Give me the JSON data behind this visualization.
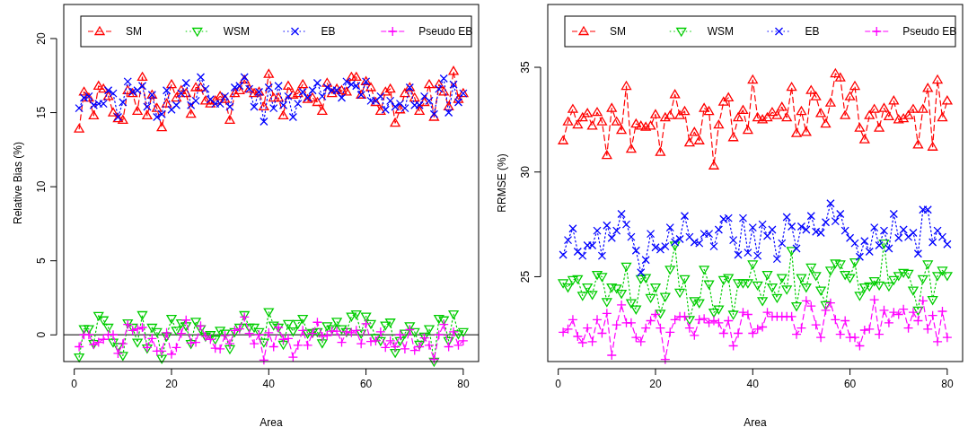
{
  "chart_data": [
    {
      "type": "line",
      "xlabel": "Area",
      "ylabel": "Relative Bias (%)",
      "xlim": [
        -2.16,
        83.16
      ],
      "ylim": [
        -1.8,
        22.3
      ],
      "xticks": [
        0,
        20,
        40,
        60,
        80
      ],
      "yticks": [
        0,
        5,
        10,
        15,
        20
      ],
      "legend": "top",
      "grid": false,
      "ref_lines": [
        {
          "axis": "y",
          "value": 0,
          "color": "#555555",
          "line_style": "solid"
        }
      ],
      "x": [
        1,
        2,
        3,
        4,
        5,
        6,
        7,
        8,
        9,
        10,
        11,
        12,
        13,
        14,
        15,
        16,
        17,
        18,
        19,
        20,
        21,
        22,
        23,
        24,
        25,
        26,
        27,
        28,
        29,
        30,
        31,
        32,
        33,
        34,
        35,
        36,
        37,
        38,
        39,
        40,
        41,
        42,
        43,
        44,
        45,
        46,
        47,
        48,
        49,
        50,
        51,
        52,
        53,
        54,
        55,
        56,
        57,
        58,
        59,
        60,
        61,
        62,
        63,
        64,
        65,
        66,
        67,
        68,
        69,
        70,
        71,
        72,
        73,
        74,
        75,
        76,
        77,
        78,
        79,
        80
      ],
      "series": [
        {
          "name": "SM",
          "color": "#ff0000",
          "marker": "triangle",
          "line_style": "dashed",
          "values": [
            13.9,
            16.4,
            16.0,
            14.8,
            16.8,
            16.6,
            16.1,
            15.0,
            14.6,
            14.5,
            16.5,
            16.3,
            15.1,
            17.4,
            14.8,
            16.2,
            15.3,
            14.0,
            15.6,
            16.9,
            16.0,
            16.5,
            16.3,
            14.9,
            16.7,
            16.7,
            15.8,
            15.6,
            15.8,
            16.1,
            15.9,
            14.5,
            16.3,
            16.5,
            17.2,
            16.6,
            16.3,
            16.4,
            15.4,
            17.6,
            16.0,
            16.0,
            14.8,
            16.8,
            16.2,
            16.3,
            16.9,
            15.9,
            16.0,
            15.7,
            15.1,
            17.0,
            16.3,
            16.6,
            16.5,
            16.4,
            17.4,
            17.4,
            16.2,
            17.1,
            16.7,
            15.7,
            15.1,
            16.4,
            16.6,
            14.3,
            15.2,
            16.3,
            16.7,
            16.0,
            15.1,
            15.7,
            16.9,
            14.7,
            16.9,
            16.4,
            15.4,
            17.8,
            15.9,
            16.3
          ]
        },
        {
          "name": "WSM",
          "color": "#00cd00",
          "marker": "triangle-down",
          "line_style": "dotted",
          "values": [
            -1.5,
            0.4,
            0.4,
            -0.6,
            1.3,
            1.0,
            0.5,
            -0.5,
            -0.8,
            -1.4,
            0.8,
            0.5,
            -0.5,
            1.35,
            -0.9,
            0.5,
            0.2,
            -1.6,
            -0.1,
            1.1,
            0.3,
            0.8,
            0.6,
            -0.6,
            0.9,
            0.4,
            -0.1,
            0.0,
            -0.3,
            0.3,
            0.1,
            -0.95,
            0.2,
            0.5,
            1.35,
            0.5,
            0.5,
            0.2,
            -0.5,
            1.55,
            0.65,
            0.5,
            -0.65,
            0.75,
            0.25,
            0.75,
            1.1,
            0.1,
            0.15,
            0.2,
            -0.55,
            0.6,
            0.4,
            0.9,
            0.4,
            0.2,
            1.25,
            1.4,
            0.1,
            1.25,
            0.75,
            -0.2,
            -0.4,
            0.65,
            0.85,
            -1.2,
            -0.4,
            0.1,
            0.6,
            0.2,
            -0.65,
            -0.1,
            0.4,
            -1.8,
            1.1,
            1.0,
            -0.4,
            1.4,
            0.05,
            0.2
          ]
        },
        {
          "name": "EB",
          "color": "#0000ff",
          "marker": "cross",
          "line_style": "dotted",
          "values": [
            15.3,
            16.0,
            16.1,
            15.5,
            15.6,
            15.6,
            16.5,
            16.3,
            14.7,
            15.7,
            17.1,
            16.4,
            16.5,
            16.8,
            15.4,
            16.2,
            14.7,
            14.9,
            16.5,
            15.2,
            15.5,
            16.3,
            17.0,
            15.5,
            15.8,
            17.4,
            16.6,
            15.9,
            15.6,
            15.6,
            16.1,
            15.4,
            16.7,
            16.8,
            17.4,
            16.6,
            15.4,
            16.4,
            14.4,
            16.7,
            15.3,
            16.8,
            15.5,
            16.1,
            14.7,
            15.6,
            16.4,
            16.0,
            16.5,
            17.0,
            16.1,
            16.7,
            16.5,
            16.5,
            16.0,
            17.1,
            16.9,
            16.8,
            16.2,
            17.1,
            15.8,
            15.8,
            16.1,
            15.2,
            15.8,
            15.4,
            15.6,
            15.3,
            16.7,
            15.5,
            15.5,
            16.1,
            15.8,
            14.9,
            16.6,
            17.3,
            15.0,
            16.9,
            15.7,
            16.3
          ]
        },
        {
          "name": "Pseudo EB",
          "color": "#ff00ff",
          "marker": "plus",
          "line_style": "dashed",
          "values": [
            -0.8,
            0.0,
            0.0,
            -0.65,
            -0.5,
            -0.3,
            0.0,
            0.0,
            -1.25,
            -0.6,
            0.7,
            0.3,
            0.4,
            0.5,
            -0.85,
            -0.25,
            -1.1,
            -1.1,
            0.15,
            -1.3,
            -0.85,
            0.1,
            1.0,
            -0.55,
            -0.5,
            0.6,
            -0.1,
            -0.3,
            -0.9,
            -0.95,
            -0.05,
            -0.6,
            0.3,
            0.4,
            1.2,
            0.1,
            -0.6,
            0.0,
            -1.7,
            0.15,
            -0.8,
            0.5,
            -0.3,
            -0.25,
            -1.5,
            -0.7,
            0.3,
            -0.7,
            0.1,
            0.85,
            -0.1,
            -0.05,
            0.25,
            0.25,
            -0.5,
            0.2,
            0.15,
            0.3,
            -0.6,
            0.75,
            -0.45,
            -0.4,
            0.2,
            -0.85,
            -0.4,
            -0.8,
            0.0,
            -0.95,
            0.35,
            -1.05,
            -0.8,
            -0.2,
            -0.7,
            -1.65,
            0.0,
            0.7,
            -0.8,
            0.2,
            -0.7,
            -0.4
          ]
        }
      ]
    },
    {
      "type": "line",
      "xlabel": "Area",
      "ylabel": "RRMSE (%)",
      "xlim": [
        -2.16,
        83.16
      ],
      "ylim": [
        20.95,
        38.0
      ],
      "xticks": [
        0,
        20,
        40,
        60,
        80
      ],
      "yticks": [
        25,
        30,
        35
      ],
      "legend": "top",
      "grid": false,
      "x": [
        1,
        2,
        3,
        4,
        5,
        6,
        7,
        8,
        9,
        10,
        11,
        12,
        13,
        14,
        15,
        16,
        17,
        18,
        19,
        20,
        21,
        22,
        23,
        24,
        25,
        26,
        27,
        28,
        29,
        30,
        31,
        32,
        33,
        34,
        35,
        36,
        37,
        38,
        39,
        40,
        41,
        42,
        43,
        44,
        45,
        46,
        47,
        48,
        49,
        50,
        51,
        52,
        53,
        54,
        55,
        56,
        57,
        58,
        59,
        60,
        61,
        62,
        63,
        64,
        65,
        66,
        67,
        68,
        69,
        70,
        71,
        72,
        73,
        74,
        75,
        76,
        77,
        78,
        79,
        80
      ],
      "series": [
        {
          "name": "SM",
          "color": "#ff0000",
          "marker": "triangle",
          "line_style": "dashed",
          "values": [
            31.5,
            32.4,
            33.0,
            32.25,
            32.6,
            32.8,
            32.2,
            32.85,
            32.4,
            30.8,
            33.05,
            32.4,
            32.0,
            34.1,
            31.1,
            32.3,
            32.2,
            32.15,
            32.2,
            32.75,
            30.95,
            32.6,
            32.7,
            33.7,
            32.7,
            32.9,
            31.4,
            31.9,
            31.5,
            33.05,
            32.9,
            30.3,
            32.25,
            33.35,
            33.55,
            31.65,
            32.6,
            32.95,
            32.0,
            34.4,
            32.6,
            32.5,
            32.6,
            32.85,
            32.7,
            33.1,
            32.6,
            34.05,
            31.85,
            32.9,
            31.9,
            33.9,
            33.6,
            32.8,
            32.3,
            33.3,
            34.7,
            34.5,
            32.7,
            33.6,
            34.1,
            32.1,
            31.55,
            32.7,
            33.0,
            32.1,
            33.05,
            32.65,
            33.4,
            32.5,
            32.55,
            32.7,
            33.0,
            31.3,
            33.0,
            34.0,
            31.2,
            34.4,
            32.6,
            33.4
          ]
        },
        {
          "name": "WSM",
          "color": "#00cd00",
          "marker": "triangle-down",
          "line_style": "dotted",
          "values": [
            24.7,
            24.5,
            24.85,
            24.9,
            24.1,
            24.5,
            24.15,
            25.1,
            25.0,
            23.8,
            24.5,
            24.45,
            24.2,
            25.5,
            23.75,
            23.45,
            24.9,
            24.95,
            24.0,
            24.5,
            23.25,
            24.05,
            25.35,
            26.5,
            24.25,
            24.9,
            22.95,
            23.85,
            23.75,
            25.35,
            24.65,
            23.3,
            23.45,
            24.85,
            24.95,
            23.2,
            24.7,
            24.7,
            24.7,
            25.6,
            24.6,
            23.85,
            25.1,
            24.5,
            24.0,
            24.95,
            24.4,
            26.25,
            23.6,
            24.95,
            24.5,
            25.45,
            25.05,
            24.35,
            23.65,
            25.3,
            25.65,
            25.6,
            25.1,
            24.95,
            25.7,
            24.1,
            24.5,
            24.55,
            24.8,
            24.6,
            26.6,
            24.55,
            24.85,
            25.05,
            25.2,
            25.15,
            24.35,
            23.4,
            24.9,
            25.6,
            23.9,
            25.05,
            25.3,
            25.05
          ]
        },
        {
          "name": "EB",
          "color": "#0000ff",
          "marker": "cross",
          "line_style": "dotted",
          "values": [
            26.05,
            26.75,
            27.3,
            26.2,
            26.0,
            26.5,
            26.5,
            27.2,
            26.0,
            27.45,
            26.85,
            27.2,
            28.0,
            27.5,
            26.9,
            26.25,
            25.2,
            25.8,
            27.05,
            26.4,
            26.3,
            26.45,
            27.35,
            26.65,
            26.8,
            27.9,
            26.9,
            26.65,
            26.6,
            27.05,
            27.05,
            26.45,
            27.25,
            27.75,
            27.8,
            26.75,
            26.05,
            27.8,
            26.15,
            27.35,
            26.0,
            27.5,
            26.95,
            27.25,
            25.85,
            26.6,
            27.85,
            27.4,
            26.35,
            27.4,
            27.25,
            27.9,
            27.15,
            27.1,
            27.6,
            28.5,
            27.65,
            28.0,
            27.2,
            26.85,
            26.6,
            25.95,
            26.7,
            26.2,
            27.35,
            26.5,
            27.2,
            26.35,
            28.0,
            26.85,
            27.25,
            26.9,
            27.1,
            26.1,
            28.2,
            28.2,
            26.65,
            27.2,
            26.9,
            26.55
          ]
        },
        {
          "name": "Pseudo EB",
          "color": "#ff00ff",
          "marker": "plus",
          "line_style": "dashed",
          "values": [
            22.35,
            22.5,
            22.95,
            22.15,
            21.85,
            22.55,
            21.9,
            22.95,
            22.3,
            23.25,
            21.25,
            22.7,
            23.65,
            22.8,
            22.8,
            22.1,
            21.9,
            22.55,
            22.9,
            23.2,
            22.55,
            21.05,
            22.35,
            22.95,
            23.1,
            23.1,
            22.55,
            22.2,
            22.95,
            23.0,
            22.8,
            22.9,
            22.8,
            22.3,
            22.9,
            21.7,
            22.3,
            23.3,
            23.2,
            22.3,
            22.5,
            22.6,
            23.3,
            23.1,
            23.1,
            23.1,
            23.1,
            23.1,
            22.25,
            22.55,
            23.85,
            23.6,
            22.7,
            22.1,
            23.4,
            23.75,
            22.95,
            22.25,
            22.9,
            22.1,
            22.1,
            21.7,
            22.45,
            22.5,
            23.9,
            22.25,
            23.4,
            22.8,
            23.3,
            23.2,
            23.45,
            22.55,
            23.3,
            22.9,
            23.85,
            22.5,
            23.15,
            21.9,
            23.35,
            22.1
          ]
        }
      ]
    }
  ]
}
